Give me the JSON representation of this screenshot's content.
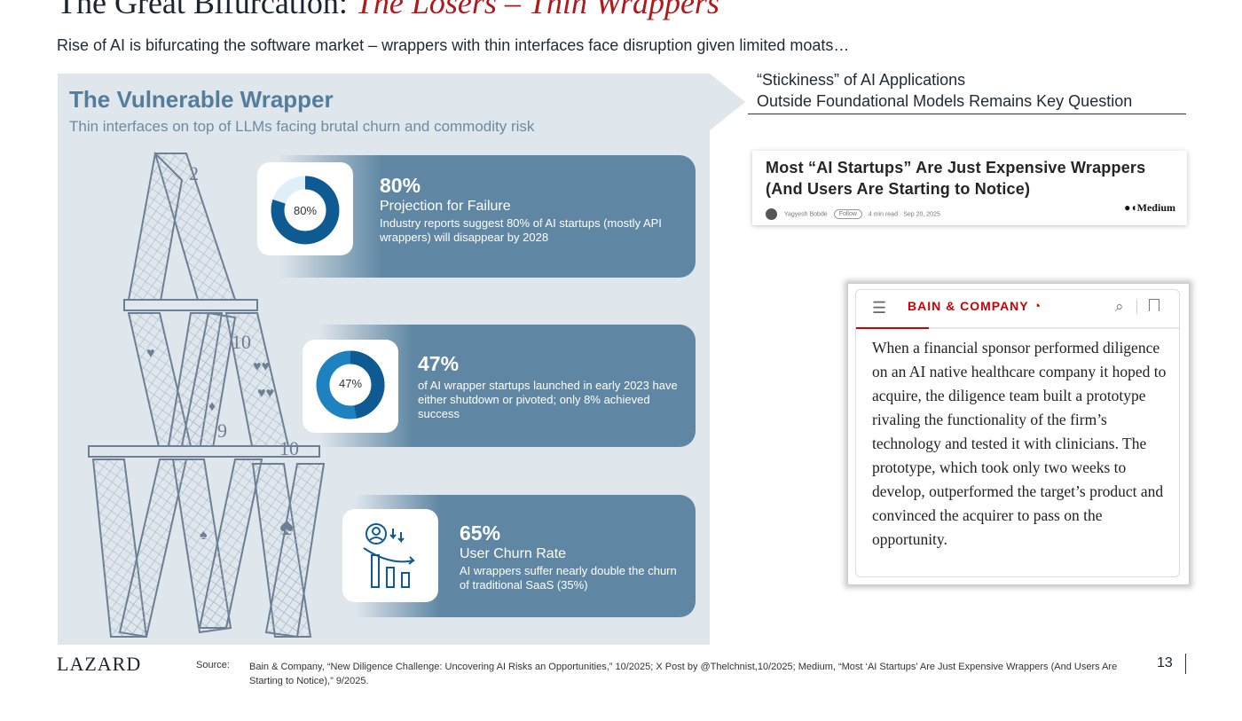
{
  "title": {
    "main": "The Great Bifurcation:",
    "accent": "The Losers – Thin Wrappers"
  },
  "subtitle": "Rise of AI is bifurcating the software market – wrappers with thin interfaces face disruption given limited moats…",
  "panel": {
    "title": "The Vulnerable Wrapper",
    "subtitle": "Thin interfaces on top of LLMs facing brutal churn and commodity risk",
    "stats": [
      {
        "value": "80%",
        "donut_label": "80%",
        "fraction": 0.8,
        "heading": "Projection for Failure",
        "description": "Industry reports suggest 80% of AI startups (mostly API wrappers) will disappear by 2028"
      },
      {
        "value": "47%",
        "donut_label": "47%",
        "fraction": 0.47,
        "heading": "",
        "description": "of AI wrapper startups launched in early 2023 have either shutdown or pivoted; only 8% achieved success"
      },
      {
        "value": "65%",
        "heading": "User Churn Rate",
        "description": "AI wrappers suffer nearly double the churn of traditional SaaS (35%)",
        "icon": "user-churn-icon"
      }
    ]
  },
  "stickiness": {
    "line1": "“Stickiness” of AI Applications",
    "line2": "Outside Foundational Models Remains Key Question"
  },
  "medium_article": {
    "title_line1": "Most “AI Startups” Are Just Expensive Wrappers",
    "title_line2": "(And Users Are Starting to Notice)",
    "author": "Yagyesh Bobde",
    "follow": "Follow",
    "read_time": "4 min read",
    "date": "Sep 20, 2025",
    "brand": "Medium"
  },
  "bain": {
    "logo": "BAIN & COMPANY",
    "quote": "When a financial sponsor performed diligence on an AI native healthcare company it hoped to acquire, the diligence team built a prototype rivaling the functionality of the firm’s technology and tested it with clinicians. The prototype, which took only two weeks to develop, outperformed the target’s product and convinced the acquirer to pass on the opportunity."
  },
  "footer": {
    "logo": "LAZARD",
    "source_label": "Source:",
    "source": "Bain & Company, “New Diligence Challenge: Uncovering AI Risks an Opportunities,” 10/2025; X Post by @Thelchnist,10/2025; Medium, “Most ‘AI Startups’ Are Just Expensive Wrappers (And Users Are Starting to Notice),” 9/2025.",
    "page": "13"
  },
  "colors": {
    "band": "#5f87a3",
    "donut_dark": "#0e5a92",
    "donut_light": "#dfeef7",
    "accent_red": "#b0181c",
    "panel_bg": "#dfe6ec"
  }
}
